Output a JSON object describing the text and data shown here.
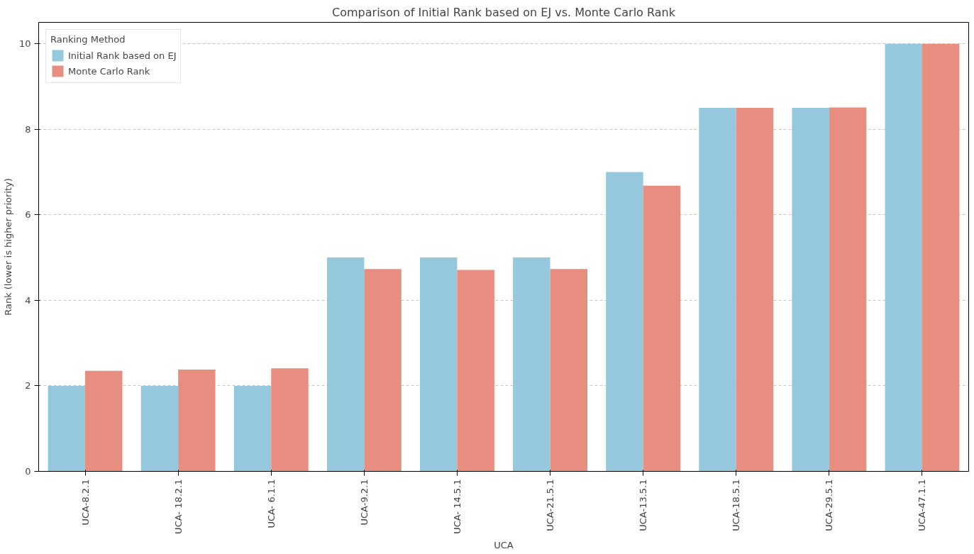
{
  "chart_data": {
    "type": "bar",
    "title": "Comparison of Initial Rank based on EJ vs. Monte Carlo Rank",
    "xlabel": "UCA",
    "ylabel": "Rank (lower is higher priority)",
    "legend_title": "Ranking Method",
    "categories": [
      "UCA-8.2.1",
      "UCA- 18.2.1",
      "UCA- 6.1.1",
      "UCA-9.2.1",
      "UCA- 14.5.1",
      "UCA-21.5.1",
      "UCA-13.5.1",
      "UCA-18.5.1",
      "UCA-29.5.1",
      "UCA-47.1.1"
    ],
    "series": [
      {
        "name": "Initial Rank based on EJ",
        "color": "#95c8dd",
        "values": [
          2,
          2,
          2,
          5,
          5,
          5,
          7,
          8.5,
          8.5,
          10
        ]
      },
      {
        "name": "Monte Carlo Rank",
        "color": "#e88e80",
        "values": [
          2.35,
          2.38,
          2.41,
          4.73,
          4.71,
          4.73,
          6.68,
          8.5,
          8.51,
          10
        ]
      }
    ],
    "ylim": [
      0,
      10.5
    ],
    "yticks": [
      0,
      2,
      4,
      6,
      8,
      10
    ],
    "grid": "y",
    "legend": "top left"
  }
}
